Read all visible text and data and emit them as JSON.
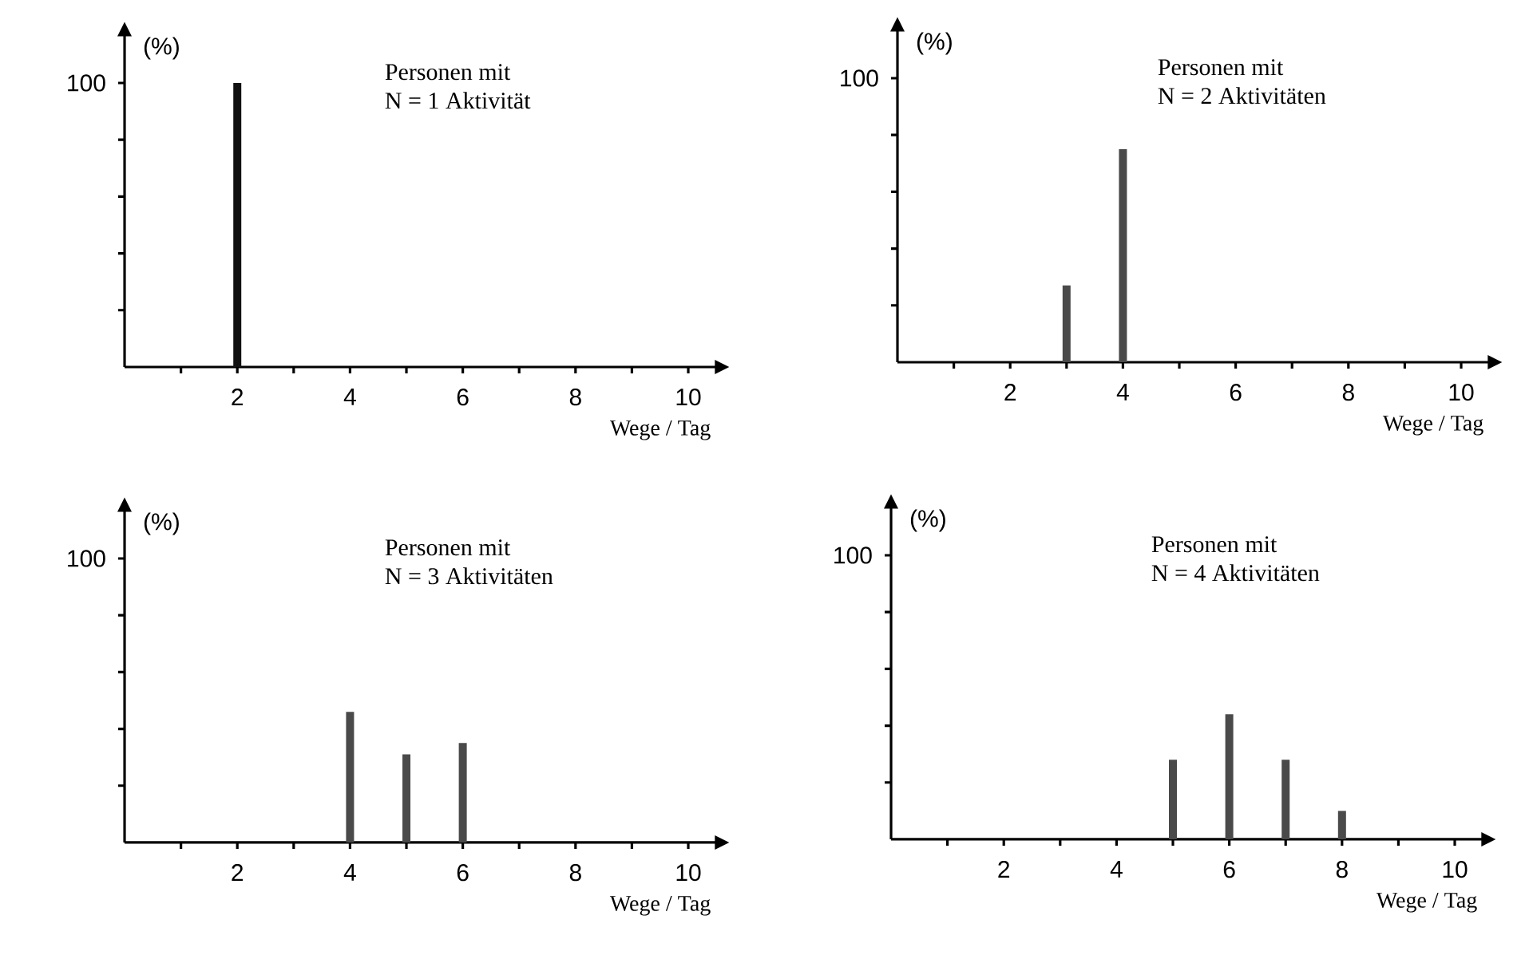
{
  "chart_data": [
    {
      "type": "bar",
      "title": "Personen mit",
      "subtitle": "N = 1 Aktivität",
      "xlabel": "Wege / Tag",
      "ylabel": "(%)",
      "color": "#111111",
      "x": [
        2
      ],
      "values": [
        100
      ],
      "xlim": [
        0,
        10.5
      ],
      "ylim": [
        0,
        117
      ],
      "xticks": [
        {
          "value": 1,
          "label": null
        },
        2,
        {
          "value": 3,
          "label": null
        },
        4,
        {
          "value": 5,
          "label": null
        },
        6,
        {
          "value": 7,
          "label": null
        },
        8,
        {
          "value": 9,
          "label": null
        },
        10
      ],
      "yticks": [
        {
          "value": 20,
          "label": null
        },
        {
          "value": 40,
          "label": null
        },
        {
          "value": 60,
          "label": null
        },
        {
          "value": 80,
          "label": null
        },
        100
      ]
    },
    {
      "type": "bar",
      "title": "Personen mit",
      "subtitle": "N = 2 Aktivitäten",
      "xlabel": "Wege / Tag",
      "ylabel": "(%)",
      "color": "#4a4a4a",
      "x": [
        3,
        4
      ],
      "values": [
        27,
        75
      ],
      "xlim": [
        0,
        10.5
      ],
      "ylim": [
        0,
        117
      ],
      "xticks": [
        {
          "value": 1,
          "label": null
        },
        2,
        {
          "value": 3,
          "label": null
        },
        4,
        {
          "value": 5,
          "label": null
        },
        6,
        {
          "value": 7,
          "label": null
        },
        8,
        {
          "value": 9,
          "label": null
        },
        10
      ],
      "yticks": [
        {
          "value": 20,
          "label": null
        },
        {
          "value": 40,
          "label": null
        },
        {
          "value": 60,
          "label": null
        },
        {
          "value": 80,
          "label": null
        },
        100
      ]
    },
    {
      "type": "bar",
      "title": "Personen mit",
      "subtitle": "N = 3 Aktivitäten",
      "xlabel": "Wege / Tag",
      "ylabel": "(%)",
      "color": "#4a4a4a",
      "x": [
        4,
        5,
        6
      ],
      "values": [
        46,
        31,
        35
      ],
      "xlim": [
        0,
        10.5
      ],
      "ylim": [
        0,
        117
      ],
      "xticks": [
        {
          "value": 1,
          "label": null
        },
        2,
        {
          "value": 3,
          "label": null
        },
        4,
        {
          "value": 5,
          "label": null
        },
        6,
        {
          "value": 7,
          "label": null
        },
        8,
        {
          "value": 9,
          "label": null
        },
        10
      ],
      "yticks": [
        {
          "value": 20,
          "label": null
        },
        {
          "value": 40,
          "label": null
        },
        {
          "value": 60,
          "label": null
        },
        {
          "value": 80,
          "label": null
        },
        100
      ]
    },
    {
      "type": "bar",
      "title": "Personen mit",
      "subtitle": "N = 4 Aktivitäten",
      "xlabel": "Wege / Tag",
      "ylabel": "(%)",
      "color": "#4a4a4a",
      "x": [
        5,
        6,
        7,
        8
      ],
      "values": [
        28,
        44,
        28,
        10
      ],
      "xlim": [
        0,
        10.5
      ],
      "ylim": [
        0,
        117
      ],
      "xticks": [
        {
          "value": 1,
          "label": null
        },
        2,
        {
          "value": 3,
          "label": null
        },
        4,
        {
          "value": 5,
          "label": null
        },
        6,
        {
          "value": 7,
          "label": null
        },
        8,
        {
          "value": 9,
          "label": null
        },
        10
      ],
      "yticks": [
        {
          "value": 20,
          "label": null
        },
        {
          "value": 40,
          "label": null
        },
        {
          "value": 60,
          "label": null
        },
        {
          "value": 80,
          "label": null
        },
        100
      ]
    }
  ]
}
